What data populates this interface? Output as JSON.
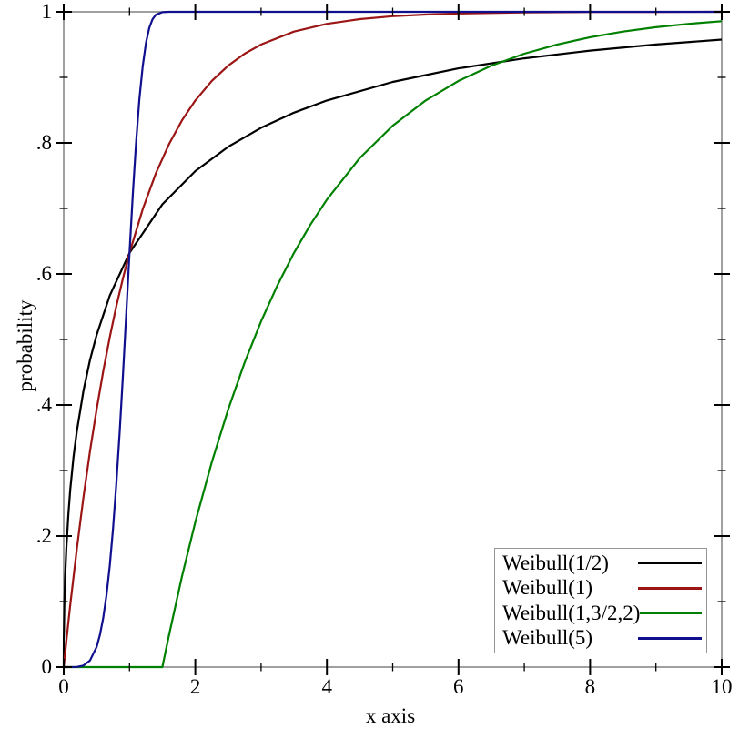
{
  "figure": {
    "background": "#ffffff",
    "frame_color": "#898989",
    "tick_color": "#000000",
    "legend_border_color": "#969696"
  },
  "chart_data": {
    "type": "line",
    "title": "",
    "xlabel": "x axis",
    "ylabel": "probability",
    "xlim": [
      0,
      10
    ],
    "ylim": [
      0,
      1
    ],
    "grid": false,
    "legend_position": "bottom-right",
    "x_major_ticks": [
      0,
      2,
      4,
      6,
      8,
      10
    ],
    "x_major_labels": [
      "0",
      "2",
      "4",
      "6",
      "8",
      "10"
    ],
    "x_minor_ticks": [
      1,
      3,
      5,
      7,
      9
    ],
    "y_major_ticks": [
      0,
      0.2,
      0.4,
      0.6,
      0.8,
      1
    ],
    "y_major_labels": [
      "0",
      ".2",
      ".4",
      ".6",
      ".8",
      "1"
    ],
    "y_minor_ticks": [
      0.1,
      0.3,
      0.5,
      0.7,
      0.9
    ],
    "series": [
      {
        "name": "Weibull(1/2)",
        "color": "#000000",
        "points": [
          [
            0,
            0
          ],
          [
            0.002,
            0.0437
          ],
          [
            0.005,
            0.0683
          ],
          [
            0.01,
            0.0952
          ],
          [
            0.02,
            0.1319
          ],
          [
            0.04,
            0.1813
          ],
          [
            0.07,
            0.2325
          ],
          [
            0.1,
            0.2711
          ],
          [
            0.15,
            0.3211
          ],
          [
            0.2,
            0.3606
          ],
          [
            0.3,
            0.4217
          ],
          [
            0.4,
            0.4687
          ],
          [
            0.5,
            0.5069
          ],
          [
            0.7,
            0.5669
          ],
          [
            1,
            0.6321
          ],
          [
            1.5,
            0.7062
          ],
          [
            2,
            0.7569
          ],
          [
            2.5,
            0.7942
          ],
          [
            3,
            0.8231
          ],
          [
            3.5,
            0.8461
          ],
          [
            4,
            0.8647
          ],
          [
            5,
            0.8931
          ],
          [
            6,
            0.9137
          ],
          [
            7,
            0.929
          ],
          [
            8,
            0.9409
          ],
          [
            9,
            0.9502
          ],
          [
            10,
            0.9577
          ]
        ]
      },
      {
        "name": "Weibull(1)",
        "color": "#9b1515",
        "points": [
          [
            0,
            0
          ],
          [
            0.05,
            0.0488
          ],
          [
            0.1,
            0.0952
          ],
          [
            0.2,
            0.1813
          ],
          [
            0.3,
            0.2592
          ],
          [
            0.4,
            0.3297
          ],
          [
            0.5,
            0.3935
          ],
          [
            0.6,
            0.4512
          ],
          [
            0.7,
            0.5034
          ],
          [
            0.8,
            0.5507
          ],
          [
            0.9,
            0.5934
          ],
          [
            1,
            0.6321
          ],
          [
            1.2,
            0.6988
          ],
          [
            1.4,
            0.7534
          ],
          [
            1.6,
            0.7981
          ],
          [
            1.8,
            0.8347
          ],
          [
            2,
            0.8647
          ],
          [
            2.25,
            0.8946
          ],
          [
            2.5,
            0.9179
          ],
          [
            2.75,
            0.9361
          ],
          [
            3,
            0.9502
          ],
          [
            3.5,
            0.9698
          ],
          [
            4,
            0.9817
          ],
          [
            4.5,
            0.9889
          ],
          [
            5,
            0.9933
          ],
          [
            5.5,
            0.9959
          ],
          [
            6,
            0.9975
          ],
          [
            7,
            0.9991
          ],
          [
            8,
            0.9997
          ],
          [
            9,
            0.9999
          ],
          [
            10,
            1
          ]
        ]
      },
      {
        "name": "Weibull(1,3/2,2)",
        "color": "#008000",
        "points": [
          [
            0,
            0
          ],
          [
            1.5,
            0
          ],
          [
            1.6,
            0.0488
          ],
          [
            1.8,
            0.1393
          ],
          [
            2,
            0.2212
          ],
          [
            2.25,
            0.3127
          ],
          [
            2.5,
            0.3935
          ],
          [
            2.75,
            0.4647
          ],
          [
            3,
            0.5276
          ],
          [
            3.25,
            0.5831
          ],
          [
            3.5,
            0.6321
          ],
          [
            3.75,
            0.6753
          ],
          [
            4,
            0.7135
          ],
          [
            4.5,
            0.7769
          ],
          [
            5,
            0.8262
          ],
          [
            5.5,
            0.8647
          ],
          [
            6,
            0.8946
          ],
          [
            6.5,
            0.9179
          ],
          [
            7,
            0.9361
          ],
          [
            7.5,
            0.9502
          ],
          [
            8,
            0.9612
          ],
          [
            8.5,
            0.9698
          ],
          [
            9,
            0.9765
          ],
          [
            9.5,
            0.9817
          ],
          [
            10,
            0.9857
          ]
        ]
      },
      {
        "name": "Weibull(5)",
        "color": "#10108f",
        "points": [
          [
            0,
            0
          ],
          [
            0.2,
            0.0003
          ],
          [
            0.3,
            0.0024
          ],
          [
            0.4,
            0.0102
          ],
          [
            0.5,
            0.0308
          ],
          [
            0.55,
            0.0491
          ],
          [
            0.6,
            0.0748
          ],
          [
            0.65,
            0.1097
          ],
          [
            0.7,
            0.1547
          ],
          [
            0.75,
            0.2112
          ],
          [
            0.8,
            0.2795
          ],
          [
            0.85,
            0.3587
          ],
          [
            0.9,
            0.4457
          ],
          [
            0.95,
            0.5387
          ],
          [
            1,
            0.6321
          ],
          [
            1.05,
            0.721
          ],
          [
            1.1,
            0.8002
          ],
          [
            1.15,
            0.8662
          ],
          [
            1.2,
            0.9169
          ],
          [
            1.25,
            0.9528
          ],
          [
            1.3,
            0.9756
          ],
          [
            1.35,
            0.9887
          ],
          [
            1.4,
            0.9954
          ],
          [
            1.5,
            0.9995
          ],
          [
            1.6,
            1
          ],
          [
            2,
            1
          ],
          [
            10,
            1
          ]
        ]
      }
    ]
  }
}
